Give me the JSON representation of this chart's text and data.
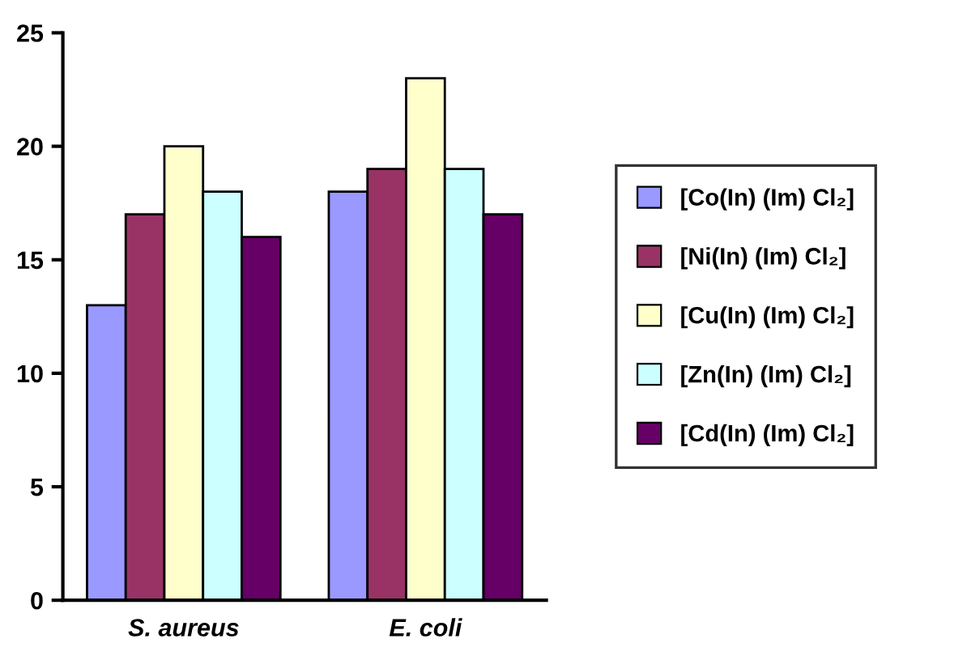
{
  "chart_data": {
    "type": "bar",
    "categories": [
      "S. aureus",
      "E. coli"
    ],
    "series": [
      {
        "name": "[Co(In) (Im) Cl₂]",
        "color": "#9999ff",
        "values": [
          13,
          18
        ]
      },
      {
        "name": "[Ni(In) (Im) Cl₂]",
        "color": "#993366",
        "values": [
          17,
          19
        ]
      },
      {
        "name": "[Cu(In) (Im) Cl₂]",
        "color": "#ffffcc",
        "values": [
          20,
          23
        ]
      },
      {
        "name": "[Zn(In) (Im) Cl₂]",
        "color": "#ccffff",
        "values": [
          18,
          19
        ]
      },
      {
        "name": "[Cd(In) (Im) Cl₂]",
        "color": "#660066",
        "values": [
          16,
          17
        ]
      }
    ],
    "ylim": [
      0,
      25
    ],
    "yticks": [
      0,
      5,
      10,
      15,
      20,
      25
    ],
    "grid": false,
    "legend": "right"
  }
}
